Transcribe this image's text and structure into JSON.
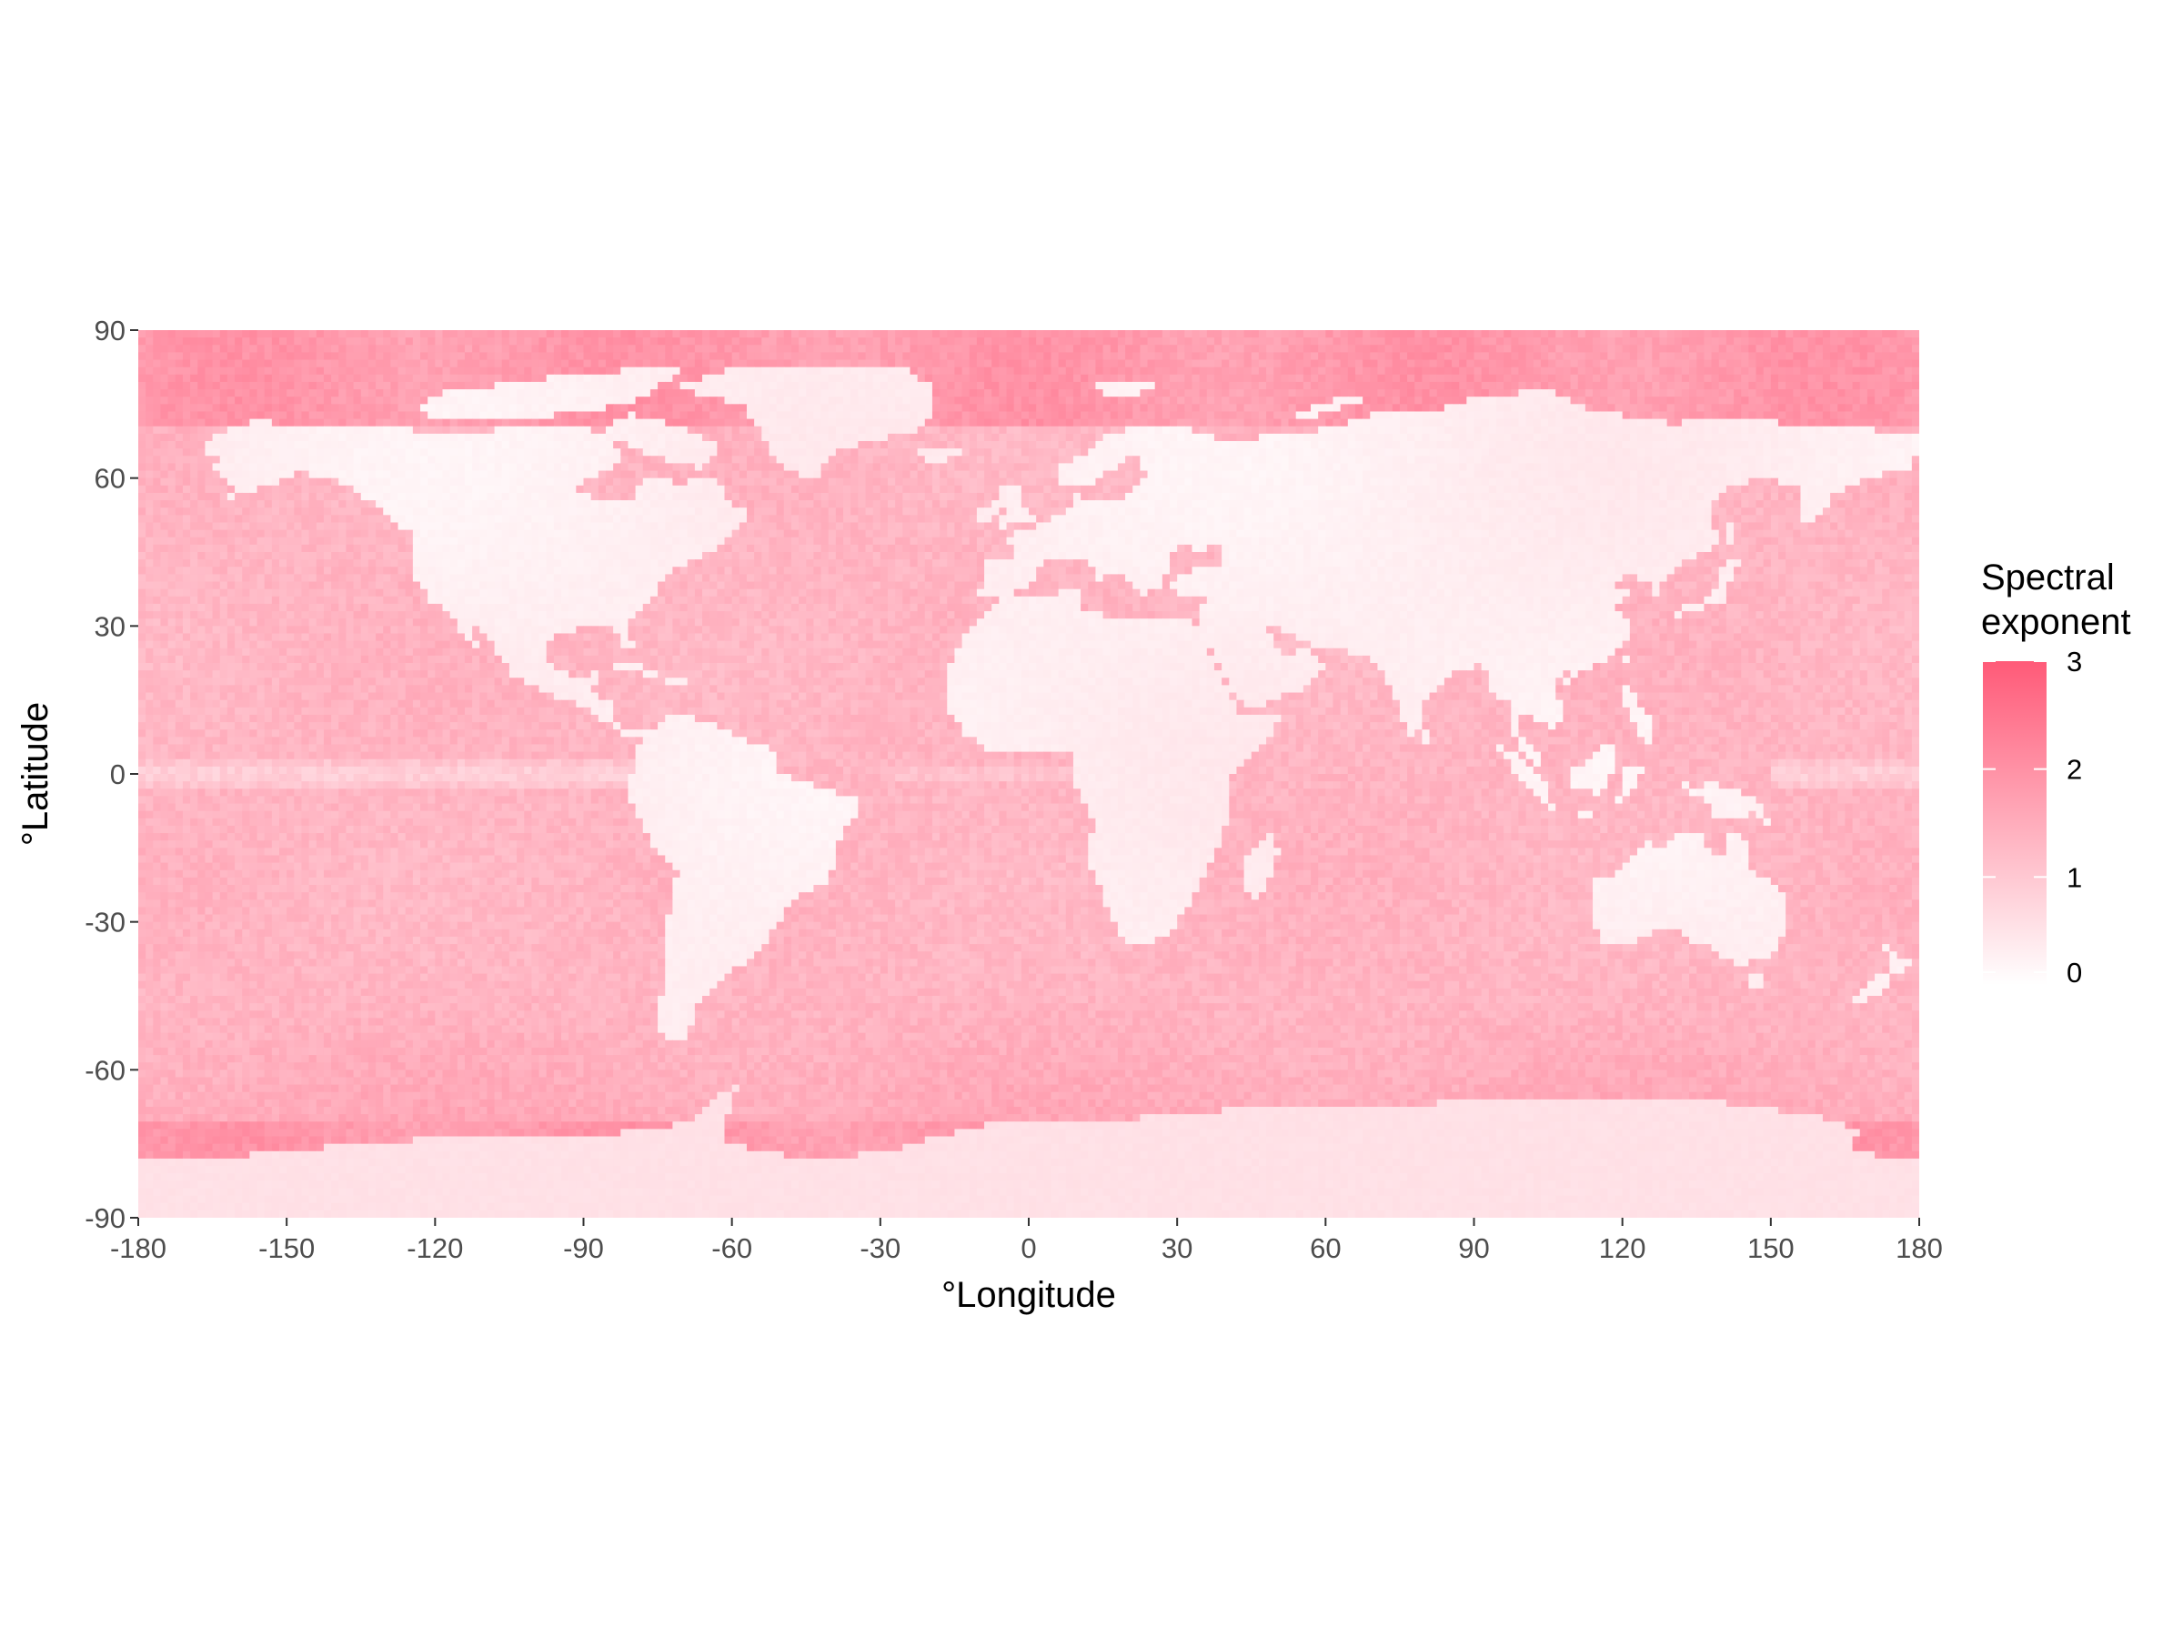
{
  "chart_data": {
    "type": "heatmap",
    "subtype": "global raster map",
    "xlabel": "°Longitude",
    "ylabel": "°Latitude",
    "xlim": [
      -180,
      180
    ],
    "ylim": [
      -90,
      90
    ],
    "x_ticks": [
      "-180",
      "-150",
      "-120",
      "-90",
      "-60",
      "-30",
      "0",
      "30",
      "60",
      "90",
      "120",
      "150",
      "180"
    ],
    "y_ticks": [
      "90",
      "60",
      "30",
      "0",
      "-30",
      "-60",
      "-90"
    ],
    "grid": false,
    "legend": {
      "title_line1": "Spectral",
      "title_line2": "exponent",
      "placement": "right",
      "min": 0,
      "max": 3,
      "labels": [
        "3",
        "2",
        "1",
        "0"
      ],
      "color_low": "#ffffff",
      "color_high": "#ff5a78"
    },
    "background_color": "#ffffff",
    "approximate_values": {
      "land": 0.3,
      "antarctica": 0.55,
      "open_ocean": 1.35,
      "tropical_pacific_equator": 0.8,
      "southern_ocean": 1.55,
      "polar_seas": 1.95
    }
  }
}
